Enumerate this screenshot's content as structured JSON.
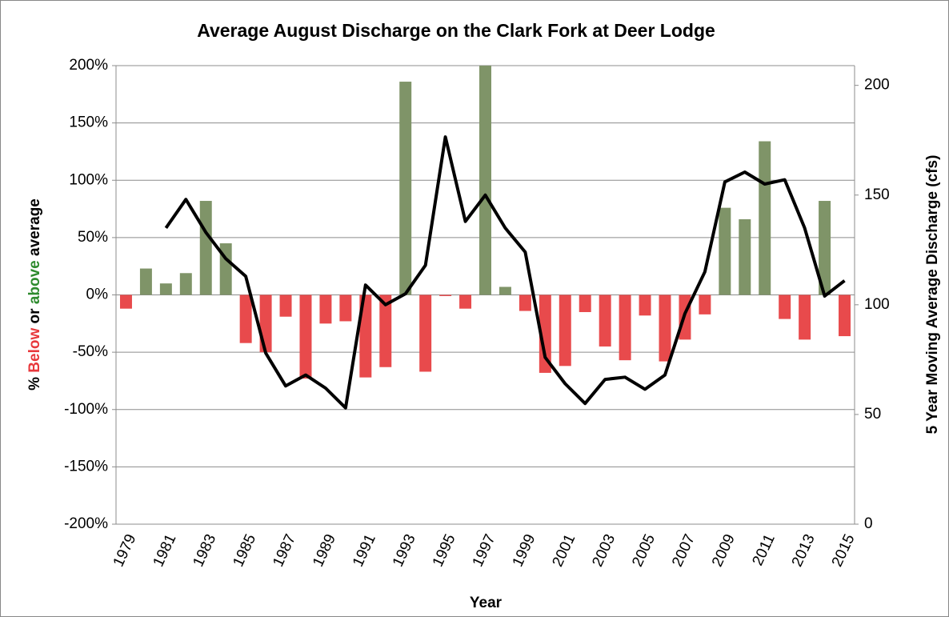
{
  "chart_data": {
    "type": "bar_line",
    "title": "Average August Discharge on the Clark Fork at Deer Lodge",
    "xlabel": "Year",
    "ylabel_parts": [
      {
        "text": "% ",
        "color": "#000000"
      },
      {
        "text": "Below",
        "color": "#e8383c"
      },
      {
        "text": " or ",
        "color": "#000000"
      },
      {
        "text": "above",
        "color": "#2e8b2e"
      },
      {
        "text": " average",
        "color": "#000000"
      }
    ],
    "y2label": "5 Year Moving Average Discharge (cfs)",
    "categories": [
      "1979",
      null,
      "1981",
      null,
      "1983",
      null,
      "1985",
      null,
      "1987",
      null,
      "1989",
      null,
      "1991",
      null,
      "1993",
      null,
      "1995",
      null,
      "1997",
      null,
      "1999",
      null,
      "2001",
      null,
      "2003",
      null,
      "2005",
      null,
      "2007",
      null,
      "2009",
      null,
      "2011",
      null,
      "2013",
      null,
      "2015"
    ],
    "series": [
      {
        "type": "bar",
        "color": "#7f9468",
        "negative_color": "#e84a4c",
        "values": [
          -12,
          23,
          10,
          19,
          82,
          45,
          -42,
          -50,
          -19,
          -73,
          -25,
          -23,
          -72,
          -63,
          186,
          -67,
          -1,
          -12,
          200,
          7,
          -14,
          -68,
          -62,
          -15,
          -45,
          -57,
          -18,
          -58,
          -39,
          -17,
          76,
          66,
          134,
          -21,
          -39,
          82,
          -36
        ]
      },
      {
        "type": "line",
        "axis": "y2",
        "color": "#000000",
        "values": [
          null,
          null,
          135,
          148,
          133,
          121,
          113,
          78,
          63,
          68,
          62,
          53,
          109,
          100,
          105,
          118,
          176.5,
          138,
          150,
          135,
          124,
          76,
          64,
          55,
          66,
          67,
          61.5,
          68,
          96,
          115,
          156,
          160.5,
          155,
          157,
          135,
          104,
          111
        ]
      }
    ],
    "ylim": [
      -200,
      200
    ],
    "yticks": [
      {
        "value": -200,
        "label": "-200%"
      },
      {
        "value": -150,
        "label": "-150%"
      },
      {
        "value": -100,
        "label": "-100%"
      },
      {
        "value": -50,
        "label": "-50%"
      },
      {
        "value": 0,
        "label": "0%"
      },
      {
        "value": 50,
        "label": "50%"
      },
      {
        "value": 100,
        "label": "100%"
      },
      {
        "value": 150,
        "label": "150%"
      },
      {
        "value": 200,
        "label": "200%"
      }
    ],
    "y2lim": [
      0,
      209
    ],
    "y2ticks": [
      0,
      50,
      100,
      150,
      200
    ],
    "grid": true
  }
}
